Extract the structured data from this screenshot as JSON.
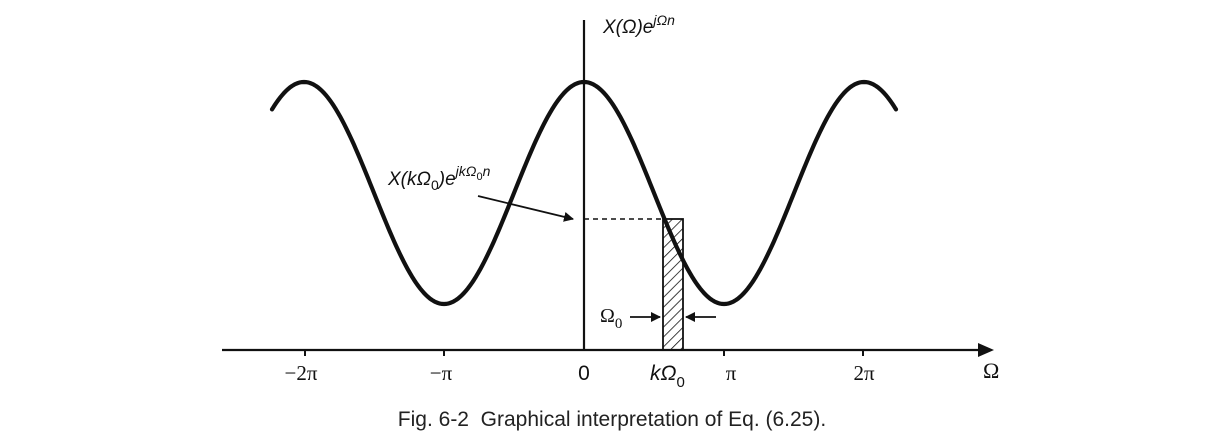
{
  "figure": {
    "caption": "Fig. 6-2  Graphical interpretation of Eq. (6.25).",
    "curve_label": {
      "main": "X(Ω)e",
      "sup": "jΩn"
    },
    "sample_label": {
      "main": "X(kΩ",
      "sub": "0",
      "mid": ")e",
      "sup": "jkΩ",
      "sup_sub": "0",
      "sup_tail": "n"
    },
    "width_label": {
      "main": "Ω",
      "sub": "0"
    },
    "axis_label": "Ω",
    "tick_labels": {
      "neg_two_pi": "−2π",
      "neg_pi": "−π",
      "zero": "0",
      "k_omega": "kΩ",
      "k_omega_sub": "0",
      "pi": "π",
      "two_pi": "2π"
    }
  },
  "chart_data": {
    "type": "line",
    "xlabel": "Ω",
    "ylabel": "X(Ω)e^{jΩn}",
    "x_ticks": [
      "−2π",
      "−π",
      "0",
      "kΩ0",
      "π",
      "2π"
    ],
    "curve": "periodic cosine-like waveform with period 2π: maxima at Ω = 0, ±2π; minima at Ω = ±π",
    "highlight": {
      "label": "X(kΩ0)e^{jkΩ0n}",
      "width_label": "Ω0",
      "style": "hatched strip"
    },
    "grid": false
  },
  "colors": {
    "ink": "#111111",
    "caption": "#222222",
    "background": "#ffffff"
  }
}
